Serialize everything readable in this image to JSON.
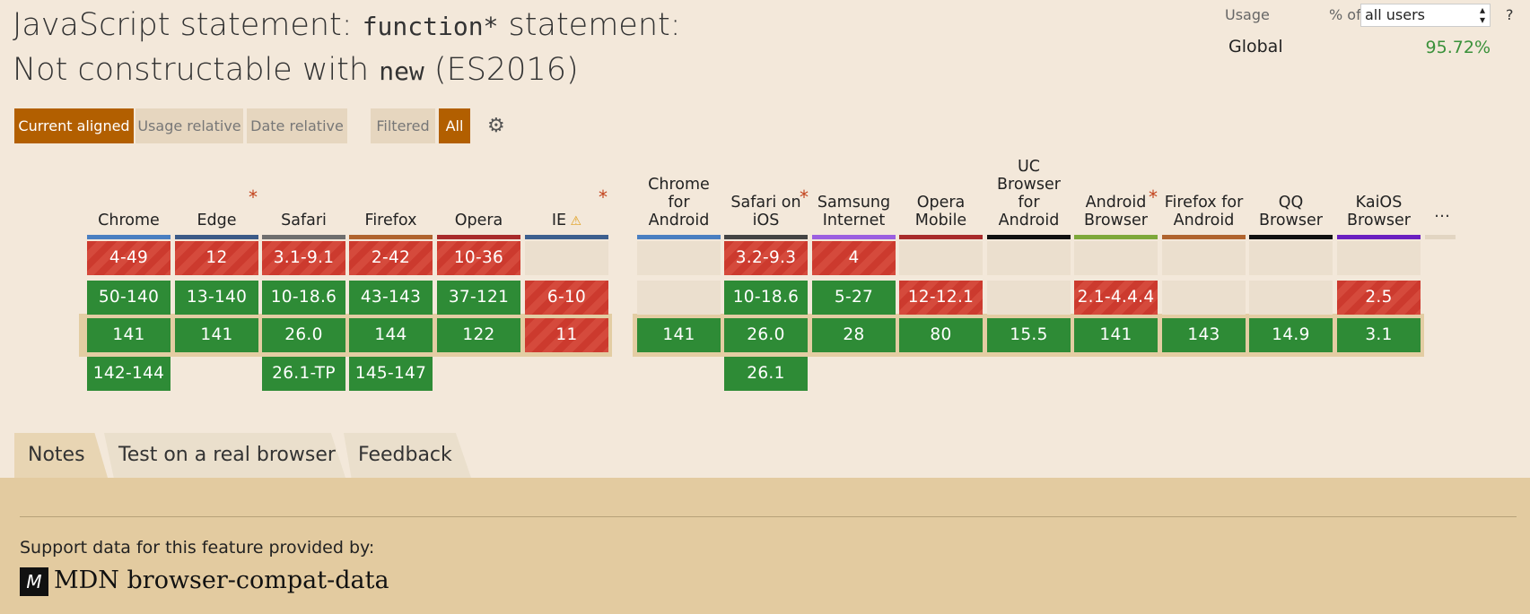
{
  "title": {
    "part1": "JavaScript statement: ",
    "code1": "function*",
    "part2": " statement: Not constructable with ",
    "code2": "new",
    "part3": " (ES2016)"
  },
  "usage": {
    "label": "Usage",
    "pct_of": "% of",
    "select_value": "all users",
    "help": "?",
    "global_label": "Global",
    "global_value": "95.72%"
  },
  "view_buttons": [
    "Current aligned",
    "Usage relative",
    "Date relative"
  ],
  "filter_buttons": [
    "Filtered",
    "All"
  ],
  "colors": {
    "supported": "#2e8b36",
    "unsupported": "#cc3a2e",
    "accent": "#b25f00"
  },
  "browsers": [
    {
      "name": "Chrome",
      "bar": "#4a7fc1",
      "cells": [
        {
          "v": "4-49",
          "s": "n"
        },
        {
          "v": "50-140",
          "s": "y"
        },
        {
          "v": "141",
          "s": "y"
        },
        {
          "v": "142-144",
          "s": "y"
        }
      ]
    },
    {
      "name": "Edge",
      "star": true,
      "bar": "#3c5a87",
      "cells": [
        {
          "v": "12",
          "s": "n"
        },
        {
          "v": "13-140",
          "s": "y"
        },
        {
          "v": "141",
          "s": "y"
        },
        null
      ]
    },
    {
      "name": "Safari",
      "bar": "#6e6e6e",
      "cells": [
        {
          "v": "3.1-9.1",
          "s": "n"
        },
        {
          "v": "10-18.6",
          "s": "y"
        },
        {
          "v": "26.0",
          "s": "y"
        },
        {
          "v": "26.1-TP",
          "s": "y"
        }
      ]
    },
    {
      "name": "Firefox",
      "bar": "#b0642e",
      "cells": [
        {
          "v": "2-42",
          "s": "n"
        },
        {
          "v": "43-143",
          "s": "y"
        },
        {
          "v": "144",
          "s": "y"
        },
        {
          "v": "145-147",
          "s": "y"
        }
      ]
    },
    {
      "name": "Opera",
      "bar": "#a82b2b",
      "cells": [
        {
          "v": "10-36",
          "s": "n"
        },
        {
          "v": "37-121",
          "s": "y"
        },
        {
          "v": "122",
          "s": "y"
        },
        null
      ]
    },
    {
      "name": "IE",
      "warn": "⚠",
      "star": true,
      "bar": "#3d5f8e",
      "cells": [
        {
          "v": "",
          "s": "e"
        },
        {
          "v": "6-10",
          "s": "n"
        },
        {
          "v": "11",
          "s": "n"
        },
        null
      ]
    },
    {
      "name": "Chrome for Android",
      "bar": "#4a7fc1",
      "cells": [
        {
          "v": "",
          "s": "e"
        },
        {
          "v": "",
          "s": "e"
        },
        {
          "v": "141",
          "s": "y"
        },
        null
      ]
    },
    {
      "name": "Safari on iOS",
      "star": true,
      "bar": "#444444",
      "cells": [
        {
          "v": "3.2-9.3",
          "s": "n"
        },
        {
          "v": "10-18.6",
          "s": "y"
        },
        {
          "v": "26.0",
          "s": "y"
        },
        {
          "v": "26.1",
          "s": "y"
        }
      ]
    },
    {
      "name": "Samsung Internet",
      "bar": "#9b5fe0",
      "cells": [
        {
          "v": "4",
          "s": "n"
        },
        {
          "v": "5-27",
          "s": "y"
        },
        {
          "v": "28",
          "s": "y"
        },
        null
      ]
    },
    {
      "name": "Opera Mobile",
      "bar": "#a82b2b",
      "cells": [
        {
          "v": "",
          "s": "e"
        },
        {
          "v": "12-12.1",
          "s": "n"
        },
        {
          "v": "80",
          "s": "y"
        },
        null
      ]
    },
    {
      "name": "UC Browser for Android",
      "bar": "#111111",
      "cells": [
        {
          "v": "",
          "s": "e"
        },
        {
          "v": "",
          "s": "e"
        },
        {
          "v": "15.5",
          "s": "y"
        },
        null
      ]
    },
    {
      "name": "Android Browser",
      "star": true,
      "bar": "#7ea83a",
      "cells": [
        {
          "v": "",
          "s": "e"
        },
        {
          "v": "2.1-4.4.4",
          "s": "n"
        },
        {
          "v": "141",
          "s": "y"
        },
        null
      ]
    },
    {
      "name": "Firefox for Android",
      "bar": "#b0642e",
      "cells": [
        {
          "v": "",
          "s": "e"
        },
        {
          "v": "",
          "s": "e"
        },
        {
          "v": "143",
          "s": "y"
        },
        null
      ]
    },
    {
      "name": "QQ Browser",
      "bar": "#111111",
      "cells": [
        {
          "v": "",
          "s": "e"
        },
        {
          "v": "",
          "s": "e"
        },
        {
          "v": "14.9",
          "s": "y"
        },
        null
      ]
    },
    {
      "name": "KaiOS Browser",
      "bar": "#6a1fc0",
      "cells": [
        {
          "v": "",
          "s": "e"
        },
        {
          "v": "2.5",
          "s": "n"
        },
        {
          "v": "3.1",
          "s": "y"
        },
        null
      ]
    }
  ],
  "more": "…",
  "tabs": [
    "Notes",
    "Test on a real browser",
    "Feedback"
  ],
  "footer": {
    "support": "Support data for this feature provided by:",
    "mdn_logo": "M",
    "mdn_text": "MDN browser-compat-data"
  }
}
